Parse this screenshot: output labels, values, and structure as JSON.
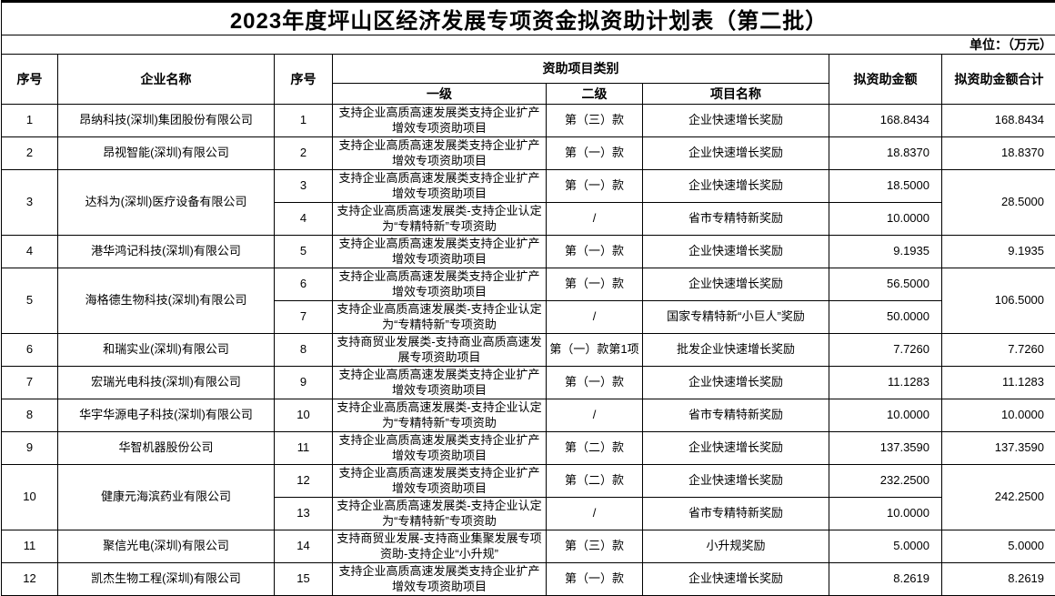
{
  "title": "2023年度坪山区经济发展专项资金拟资助计划表（第二批）",
  "unit_label": "单位：（万元）",
  "header": {
    "seq": "序号",
    "company": "企业名称",
    "seq2": "序号",
    "category_group": "资助项目类别",
    "level1": "一级",
    "level2": "二级",
    "project": "项目名称",
    "amount": "拟资助金额",
    "total": "拟资助金额合计"
  },
  "companies": [
    {
      "seq": "1",
      "name": "昂纳科技(深圳)集团股份有限公司",
      "total": "168.8434",
      "items": [
        {
          "seq": "1",
          "level1": "支持企业高质高速发展类支持企业扩产增效专项资助项目",
          "level2": "第（三）款",
          "project": "企业快速增长奖励",
          "amount": "168.8434"
        }
      ]
    },
    {
      "seq": "2",
      "name": "昂视智能(深圳)有限公司",
      "total": "18.8370",
      "items": [
        {
          "seq": "2",
          "level1": "支持企业高质高速发展类支持企业扩产增效专项资助项目",
          "level2": "第（一）款",
          "project": "企业快速增长奖励",
          "amount": "18.8370"
        }
      ]
    },
    {
      "seq": "3",
      "name": "达科为(深圳)医疗设备有限公司",
      "total": "28.5000",
      "items": [
        {
          "seq": "3",
          "level1": "支持企业高质高速发展类支持企业扩产增效专项资助项目",
          "level2": "第（一）款",
          "project": "企业快速增长奖励",
          "amount": "18.5000"
        },
        {
          "seq": "4",
          "level1": "支持企业高质高速发展类-支持企业认定为“专精特新”专项资助",
          "level2": "/",
          "project": "省市专精特新奖励",
          "amount": "10.0000"
        }
      ]
    },
    {
      "seq": "4",
      "name": "港华鸿记科技(深圳)有限公司",
      "total": "9.1935",
      "items": [
        {
          "seq": "5",
          "level1": "支持企业高质高速发展类支持企业扩产增效专项资助项目",
          "level2": "第（一）款",
          "project": "企业快速增长奖励",
          "amount": "9.1935"
        }
      ]
    },
    {
      "seq": "5",
      "name": "海格德生物科技(深圳)有限公司",
      "total": "106.5000",
      "items": [
        {
          "seq": "6",
          "level1": "支持企业高质高速发展类支持企业扩产增效专项资助项目",
          "level2": "第（一）款",
          "project": "企业快速增长奖励",
          "amount": "56.5000"
        },
        {
          "seq": "7",
          "level1": "支持企业高质高速发展类-支持企业认定为“专精特新”专项资助",
          "level2": "/",
          "project": "国家专精特新“小巨人”奖励",
          "amount": "50.0000"
        }
      ]
    },
    {
      "seq": "6",
      "name": "和瑞实业(深圳)有限公司",
      "total": "7.7260",
      "items": [
        {
          "seq": "8",
          "level1": "支持商贸业发展类-支持商业高质高速发展专项资助项目",
          "level2": "第（一）款第1项",
          "project": "批发企业快速增长奖励",
          "amount": "7.7260"
        }
      ]
    },
    {
      "seq": "7",
      "name": "宏瑞光电科技(深圳)有限公司",
      "total": "11.1283",
      "items": [
        {
          "seq": "9",
          "level1": "支持企业高质高速发展类支持企业扩产增效专项资助项目",
          "level2": "第（一）款",
          "project": "企业快速增长奖励",
          "amount": "11.1283"
        }
      ]
    },
    {
      "seq": "8",
      "name": "华宇华源电子科技(深圳)有限公司",
      "total": "10.0000",
      "items": [
        {
          "seq": "10",
          "level1": "支持企业高质高速发展类-支持企业认定为“专精特新”专项资助",
          "level2": "/",
          "project": "省市专精特新奖励",
          "amount": "10.0000"
        }
      ]
    },
    {
      "seq": "9",
      "name": "华智机器股份公司",
      "total": "137.3590",
      "items": [
        {
          "seq": "11",
          "level1": "支持企业高质高速发展类支持企业扩产增效专项资助项目",
          "level2": "第（二）款",
          "project": "企业快速增长奖励",
          "amount": "137.3590"
        }
      ]
    },
    {
      "seq": "10",
      "name": "健康元海滨药业有限公司",
      "total": "242.2500",
      "items": [
        {
          "seq": "12",
          "level1": "支持企业高质高速发展类支持企业扩产增效专项资助项目",
          "level2": "第（二）款",
          "project": "企业快速增长奖励",
          "amount": "232.2500"
        },
        {
          "seq": "13",
          "level1": "支持企业高质高速发展类-支持企业认定为“专精特新”专项资助",
          "level2": "/",
          "project": "省市专精特新奖励",
          "amount": "10.0000"
        }
      ]
    },
    {
      "seq": "11",
      "name": "聚信光电(深圳)有限公司",
      "total": "5.0000",
      "items": [
        {
          "seq": "14",
          "level1": "支持商贸业发展-支持商业集聚发展专项资助-支持企业“小升规”",
          "level2": "第（三）款",
          "project": "小升规奖励",
          "amount": "5.0000"
        }
      ]
    },
    {
      "seq": "12",
      "name": "凯杰生物工程(深圳)有限公司",
      "total": "8.2619",
      "items": [
        {
          "seq": "15",
          "level1": "支持企业高质高速发展类支持企业扩产增效专项资助项目",
          "level2": "第（一）款",
          "project": "企业快速增长奖励",
          "amount": "8.2619"
        }
      ]
    }
  ]
}
